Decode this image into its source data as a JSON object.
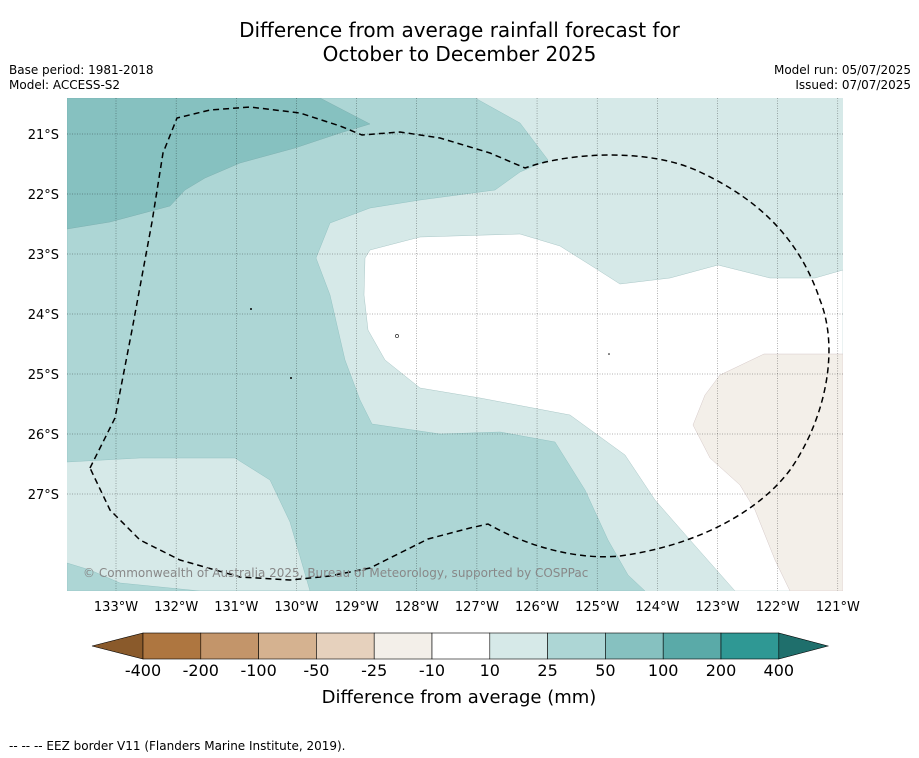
{
  "header": {
    "title_line1": "Difference from average rainfall forecast for",
    "title_line2": "October to December 2025",
    "base_period": "Base period: 1981-2018",
    "model": "Model: ACCESS-S2",
    "model_run": "Model run: 05/07/2025",
    "issued": "Issued: 07/07/2025"
  },
  "map": {
    "lat_labels": [
      "21°S",
      "22°S",
      "23°S",
      "24°S",
      "25°S",
      "26°S",
      "27°S"
    ],
    "lon_labels": [
      "133°W",
      "132°W",
      "131°W",
      "130°W",
      "129°W",
      "128°W",
      "127°W",
      "126°W",
      "125°W",
      "124°W",
      "123°W",
      "122°W",
      "121°W"
    ],
    "copyright": "© Commonwealth of Australia 2025, Bureau of Meteorology, supported by COSPPac",
    "line_style": "dashed EEZ border",
    "colors": {
      "dry_10_25": "#f3efe9",
      "wet_10_25": "#d6e9e8",
      "wet_25_50": "#add6d5",
      "wet_50_100": "#86c1c0",
      "background": "#ffffff"
    }
  },
  "colorbar": {
    "ticks": [
      "-400",
      "-200",
      "-100",
      "-50",
      "-25",
      "-10",
      "10",
      "25",
      "50",
      "100",
      "200",
      "400"
    ],
    "colors": [
      "#8a5a2b",
      "#ae7640",
      "#c3956a",
      "#d5b290",
      "#e6d1bd",
      "#f3efe9",
      "#ffffff",
      "#d6e9e8",
      "#add6d5",
      "#86c1c0",
      "#5aaaa8",
      "#2f9894",
      "#1f6f6c"
    ],
    "label": "Difference from average (mm)"
  },
  "footnote": "--  --  -- EEZ border V11 (Flanders Marine Institute, 2019)."
}
